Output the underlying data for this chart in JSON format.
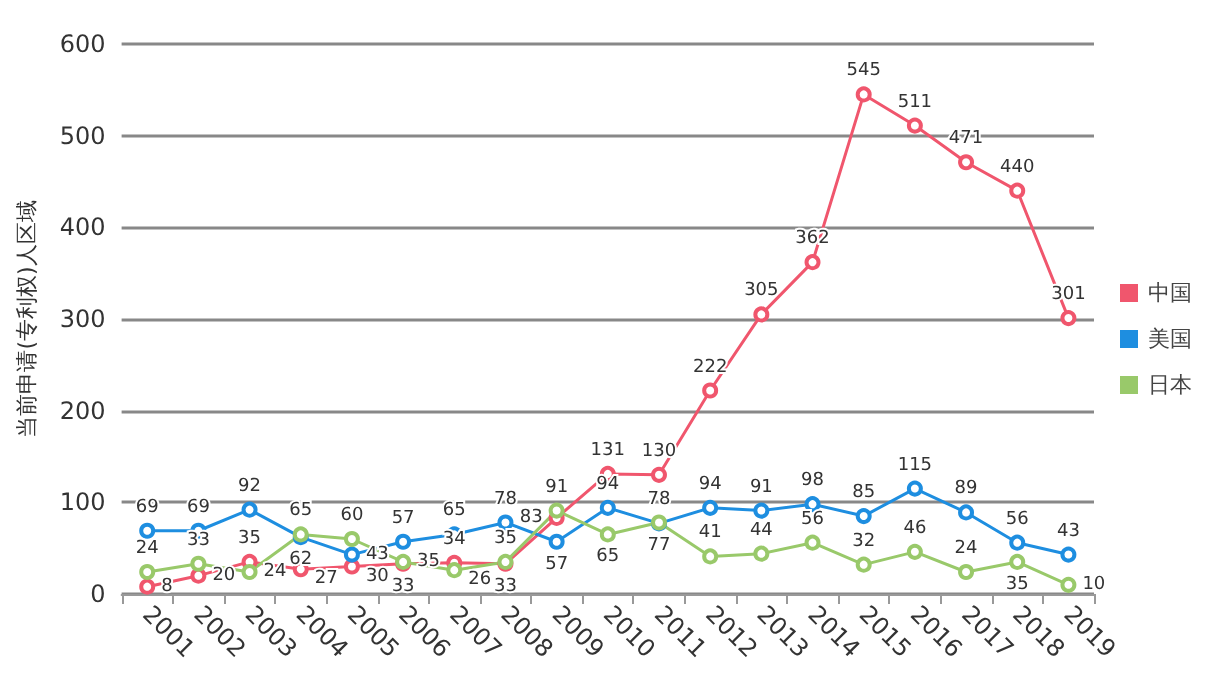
{
  "chart_data": {
    "type": "line",
    "ylabel": "当前申请(专利权)人区域",
    "categories": [
      "2001",
      "2002",
      "2003",
      "2004",
      "2005",
      "2006",
      "2007",
      "2008",
      "2009",
      "2010",
      "2011",
      "2012",
      "2013",
      "2014",
      "2015",
      "2016",
      "2017",
      "2018",
      "2019"
    ],
    "series": [
      {
        "name": "中国",
        "color": "#f0566d",
        "values": [
          8,
          20,
          35,
          27,
          30,
          33,
          34,
          33,
          83,
          131,
          130,
          222,
          305,
          362,
          545,
          511,
          471,
          440,
          301
        ]
      },
      {
        "name": "美国",
        "color": "#1e8ee0",
        "values": [
          69,
          69,
          92,
          62,
          43,
          57,
          65,
          78,
          57,
          94,
          77,
          94,
          91,
          98,
          85,
          115,
          89,
          56,
          43
        ]
      },
      {
        "name": "日本",
        "color": "#99c96a",
        "values": [
          24,
          33,
          24,
          65,
          60,
          35,
          26,
          35,
          91,
          65,
          78,
          41,
          44,
          56,
          32,
          46,
          24,
          35,
          10
        ]
      }
    ],
    "ylim": [
      0,
      600
    ],
    "yticks": [
      0,
      100,
      200,
      300,
      400,
      500,
      600
    ],
    "grid": "y",
    "legend": "right",
    "marker": "circle",
    "line_style": "solid",
    "data_labels": true
  }
}
